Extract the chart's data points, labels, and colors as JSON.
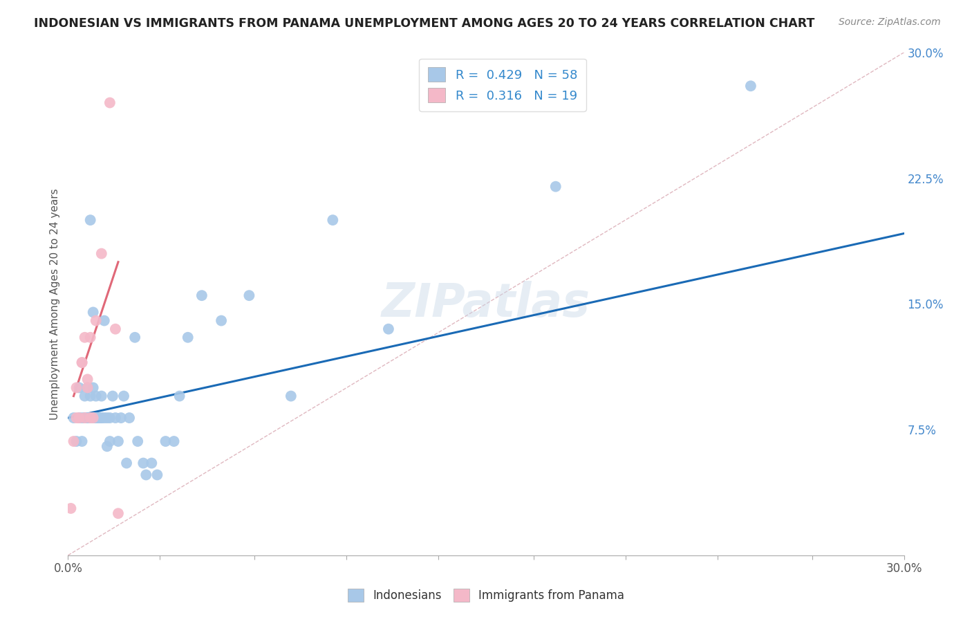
{
  "title": "INDONESIAN VS IMMIGRANTS FROM PANAMA UNEMPLOYMENT AMONG AGES 20 TO 24 YEARS CORRELATION CHART",
  "source": "Source: ZipAtlas.com",
  "xlabel": "",
  "ylabel": "Unemployment Among Ages 20 to 24 years",
  "xlim": [
    0.0,
    0.3
  ],
  "ylim": [
    0.0,
    0.3
  ],
  "xticks": [
    0.0,
    0.033,
    0.067,
    0.1,
    0.133,
    0.167,
    0.2,
    0.233,
    0.267,
    0.3
  ],
  "yticks": [
    0.0,
    0.075,
    0.15,
    0.225,
    0.3
  ],
  "xticklabels_show": [
    "0.0%",
    "30.0%"
  ],
  "yticklabels": [
    "",
    "7.5%",
    "15.0%",
    "22.5%",
    "30.0%"
  ],
  "indonesian_R": 0.429,
  "indonesian_N": 58,
  "panama_R": 0.316,
  "panama_N": 19,
  "indonesian_color": "#a8c8e8",
  "panama_color": "#f4b8c8",
  "indonesian_line_color": "#1a6ab5",
  "panama_line_color": "#e06878",
  "diagonal_color": "#e0b8c0",
  "watermark": "ZIPatlas",
  "ind_line_x0": 0.0,
  "ind_line_y0": 0.082,
  "ind_line_x1": 0.3,
  "ind_line_y1": 0.192,
  "pan_line_x0": 0.002,
  "pan_line_y0": 0.095,
  "pan_line_x1": 0.018,
  "pan_line_y1": 0.175,
  "indonesian_x": [
    0.002,
    0.003,
    0.004,
    0.004,
    0.005,
    0.005,
    0.006,
    0.006,
    0.006,
    0.007,
    0.007,
    0.007,
    0.008,
    0.008,
    0.008,
    0.009,
    0.009,
    0.009,
    0.009,
    0.01,
    0.01,
    0.01,
    0.011,
    0.011,
    0.012,
    0.012,
    0.012,
    0.013,
    0.013,
    0.014,
    0.014,
    0.015,
    0.015,
    0.016,
    0.017,
    0.018,
    0.019,
    0.02,
    0.021,
    0.022,
    0.024,
    0.025,
    0.027,
    0.028,
    0.03,
    0.032,
    0.035,
    0.038,
    0.04,
    0.043,
    0.048,
    0.055,
    0.065,
    0.08,
    0.095,
    0.115,
    0.175,
    0.245
  ],
  "indonesian_y": [
    0.082,
    0.068,
    0.1,
    0.082,
    0.082,
    0.068,
    0.082,
    0.095,
    0.082,
    0.082,
    0.1,
    0.082,
    0.082,
    0.095,
    0.2,
    0.082,
    0.1,
    0.082,
    0.145,
    0.082,
    0.095,
    0.082,
    0.082,
    0.082,
    0.082,
    0.082,
    0.095,
    0.082,
    0.14,
    0.065,
    0.082,
    0.068,
    0.082,
    0.095,
    0.082,
    0.068,
    0.082,
    0.095,
    0.055,
    0.082,
    0.13,
    0.068,
    0.055,
    0.048,
    0.055,
    0.048,
    0.068,
    0.068,
    0.095,
    0.13,
    0.155,
    0.14,
    0.155,
    0.095,
    0.2,
    0.135,
    0.22,
    0.28
  ],
  "panama_x": [
    0.001,
    0.002,
    0.003,
    0.003,
    0.004,
    0.005,
    0.005,
    0.006,
    0.006,
    0.007,
    0.007,
    0.008,
    0.008,
    0.009,
    0.01,
    0.012,
    0.015,
    0.017,
    0.018
  ],
  "panama_y": [
    0.028,
    0.068,
    0.1,
    0.082,
    0.082,
    0.115,
    0.115,
    0.13,
    0.082,
    0.105,
    0.1,
    0.13,
    0.082,
    0.082,
    0.14,
    0.18,
    0.27,
    0.135,
    0.025
  ]
}
